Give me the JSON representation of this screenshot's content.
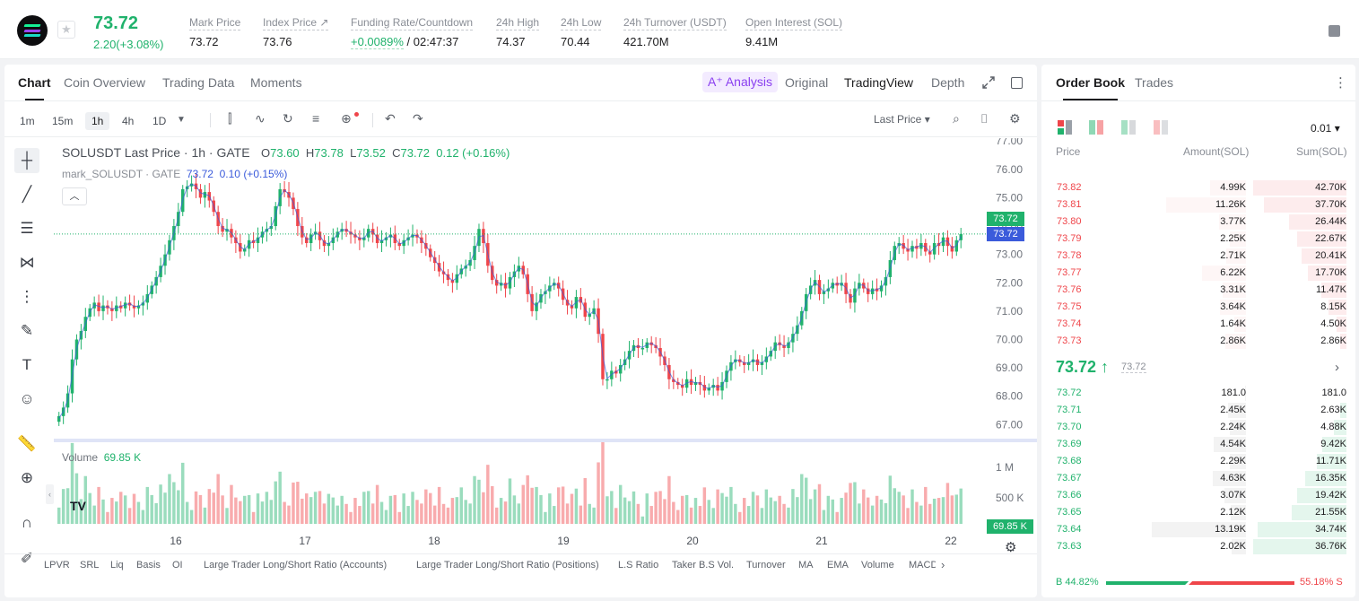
{
  "header": {
    "last_price": "73.72",
    "change": "2.20(+3.08%)",
    "stats": [
      {
        "label": "Mark Price",
        "value": "73.72"
      },
      {
        "label": "Index Price ↗",
        "value": "73.76"
      },
      {
        "label": "Funding Rate/Countdown",
        "value_green": "+0.0089%",
        "value": " / 02:47:37"
      },
      {
        "label": "24h High",
        "value": "74.37"
      },
      {
        "label": "24h Low",
        "value": "70.44"
      },
      {
        "label": "24h Turnover (USDT)",
        "value": "421.70M"
      },
      {
        "label": "Open Interest (SOL)",
        "value": "9.41M"
      }
    ],
    "star": "★"
  },
  "chart_tabs": [
    "Chart",
    "Coin Overview",
    "Trading Data",
    "Moments"
  ],
  "view_tabs": {
    "analysis": "A⁺ Analysis",
    "original": "Original",
    "tradingview": "TradingView",
    "depth": "Depth"
  },
  "timeframes": [
    "1m",
    "15m",
    "1h",
    "4h",
    "1D"
  ],
  "price_source": "Last Price ▾",
  "legend": {
    "symbol": "SOLUSDT Last Price · 1h · GATE",
    "o_label": "O",
    "o": "73.60",
    "h_label": "H",
    "h": "73.78",
    "l_label": "L",
    "l": "73.52",
    "c_label": "C",
    "c": "73.72",
    "chg": "0.12 (+0.16%)",
    "mark_label": "mark_SOLUSDT · GATE",
    "mark_value": "73.72",
    "mark_chg": "0.10 (+0.15%)",
    "volume_label": "Volume",
    "volume_value": "69.85 K"
  },
  "price_tags": {
    "last": "73.72",
    "mark": "73.72",
    "volume": "69.85 K"
  },
  "bottom_indicators": [
    "LPVR",
    "SRL",
    "Liq",
    "Basis",
    "OI",
    "Large Trader Long/Short Ratio (Accounts)",
    "Large Trader Long/Short Ratio (Positions)",
    "L.S Ratio",
    "Taker B.S Vol.",
    "Turnover",
    "MA",
    "EMA",
    "Volume",
    "MACD"
  ],
  "chart_data": {
    "type": "candlestick",
    "price_axis_ticks": [
      "77.00",
      "76.00",
      "75.00",
      "74.00",
      "73.00",
      "72.00",
      "71.00",
      "70.00",
      "69.00",
      "68.00",
      "67.00"
    ],
    "ylim": [
      66.6,
      77.1
    ],
    "volume_axis_ticks": [
      "1 M",
      "500 K"
    ],
    "x_ticks": [
      "16",
      "17",
      "18",
      "19",
      "20",
      "21",
      "22"
    ],
    "close_path": [
      67.3,
      67.6,
      68.1,
      69.3,
      70.0,
      70.3,
      70.8,
      71.1,
      71.3,
      71.0,
      71.2,
      71.1,
      71.0,
      71.2,
      71.1,
      71.3,
      71.2,
      71.1,
      71.2,
      71.3,
      71.6,
      71.9,
      72.2,
      72.6,
      73.0,
      73.5,
      74.0,
      74.5,
      75.3,
      75.4,
      75.5,
      75.3,
      75.0,
      75.2,
      74.9,
      74.5,
      74.0,
      73.8,
      73.9,
      73.6,
      73.4,
      73.1,
      73.2,
      73.5,
      73.4,
      73.6,
      73.8,
      73.9,
      74.0,
      74.7,
      75.3,
      75.2,
      75.0,
      74.6,
      74.0,
      73.6,
      73.4,
      73.7,
      73.8,
      73.5,
      73.3,
      73.4,
      73.6,
      73.8,
      73.9,
      73.8,
      73.7,
      73.6,
      73.5,
      73.6,
      73.9,
      73.7,
      73.4,
      73.5,
      73.6,
      73.7,
      73.4,
      73.3,
      73.5,
      73.6,
      73.7,
      73.6,
      73.4,
      73.2,
      72.9,
      72.7,
      72.4,
      72.3,
      72.1,
      72.0,
      72.3,
      72.5,
      72.6,
      72.8,
      73.3,
      73.9,
      73.4,
      72.6,
      72.1,
      71.9,
      72.0,
      71.8,
      72.2,
      72.4,
      72.6,
      72.3,
      71.6,
      71.0,
      71.3,
      71.6,
      71.7,
      71.9,
      72.0,
      71.8,
      71.4,
      71.2,
      71.1,
      71.5,
      71.3,
      70.8,
      70.9,
      71.1,
      70.2,
      68.6,
      68.6,
      68.9,
      68.8,
      69.1,
      69.3,
      69.6,
      69.8,
      69.7,
      69.7,
      69.9,
      69.8,
      69.7,
      69.4,
      69.1,
      68.6,
      68.5,
      68.4,
      68.3,
      68.6,
      68.4,
      68.5,
      68.4,
      68.2,
      68.3,
      68.4,
      68.2,
      68.5,
      68.9,
      69.2,
      69.3,
      69.2,
      69.1,
      69.2,
      69.3,
      69.1,
      69.2,
      69.4,
      69.6,
      69.9,
      69.8,
      69.7,
      69.9,
      70.2,
      70.5,
      71.0,
      71.6,
      71.9,
      72.1,
      71.6,
      71.7,
      71.8,
      72.0,
      71.9,
      72.0,
      71.6,
      71.3,
      71.8,
      72.0,
      71.8,
      71.6,
      71.8,
      71.7,
      71.9,
      72.2,
      72.8,
      73.3,
      73.4,
      73.2,
      73.1,
      73.3,
      73.2,
      73.4,
      73.1,
      73.0,
      73.4,
      73.3,
      73.6,
      73.3,
      73.1,
      73.5,
      73.72
    ],
    "volume_scale_k": 1000
  },
  "orderbook": {
    "tabs": [
      "Order Book",
      "Trades"
    ],
    "precision": "0.01 ▾",
    "headers": [
      "Price",
      "Amount(SOL)",
      "Sum(SOL)"
    ],
    "asks": [
      {
        "price": "73.82",
        "amount": "4.99K",
        "sum": "42.70K",
        "depth": 1.0,
        "amt": 0.38
      },
      {
        "price": "73.81",
        "amount": "11.26K",
        "sum": "37.70K",
        "depth": 0.88,
        "amt": 0.85
      },
      {
        "price": "73.80",
        "amount": "3.77K",
        "sum": "26.44K",
        "depth": 0.62,
        "amt": 0.29
      },
      {
        "price": "73.79",
        "amount": "2.25K",
        "sum": "22.67K",
        "depth": 0.53,
        "amt": 0.17
      },
      {
        "price": "73.78",
        "amount": "2.71K",
        "sum": "20.41K",
        "depth": 0.48,
        "amt": 0.21
      },
      {
        "price": "73.77",
        "amount": "6.22K",
        "sum": "17.70K",
        "depth": 0.41,
        "amt": 0.47
      },
      {
        "price": "73.76",
        "amount": "3.31K",
        "sum": "11.47K",
        "depth": 0.27,
        "amt": 0.25
      },
      {
        "price": "73.75",
        "amount": "3.64K",
        "sum": "8.15K",
        "depth": 0.19,
        "amt": 0.28
      },
      {
        "price": "73.74",
        "amount": "1.64K",
        "sum": "4.50K",
        "depth": 0.11,
        "amt": 0.12
      },
      {
        "price": "73.73",
        "amount": "2.86K",
        "sum": "2.86K",
        "depth": 0.07,
        "amt": 0.22
      }
    ],
    "mid_price": "73.72 ↑",
    "mid_mark": "73.72",
    "bids": [
      {
        "price": "73.72",
        "amount": "181.0",
        "sum": "181.0",
        "depth": 0.0,
        "amt": 0.01
      },
      {
        "price": "73.71",
        "amount": "2.45K",
        "sum": "2.63K",
        "depth": 0.07,
        "amt": 0.19
      },
      {
        "price": "73.70",
        "amount": "2.24K",
        "sum": "4.88K",
        "depth": 0.13,
        "amt": 0.17
      },
      {
        "price": "73.69",
        "amount": "4.54K",
        "sum": "9.42K",
        "depth": 0.26,
        "amt": 0.34
      },
      {
        "price": "73.68",
        "amount": "2.29K",
        "sum": "11.71K",
        "depth": 0.32,
        "amt": 0.17
      },
      {
        "price": "73.67",
        "amount": "4.63K",
        "sum": "16.35K",
        "depth": 0.44,
        "amt": 0.35
      },
      {
        "price": "73.66",
        "amount": "3.07K",
        "sum": "19.42K",
        "depth": 0.53,
        "amt": 0.23
      },
      {
        "price": "73.65",
        "amount": "2.12K",
        "sum": "21.55K",
        "depth": 0.59,
        "amt": 0.16
      },
      {
        "price": "73.64",
        "amount": "13.19K",
        "sum": "34.74K",
        "depth": 0.95,
        "amt": 1.0
      },
      {
        "price": "73.63",
        "amount": "2.02K",
        "sum": "36.76K",
        "depth": 1.0,
        "amt": 0.15
      }
    ],
    "buy_ratio": "B 44.82%",
    "sell_ratio": "55.18% S",
    "buy_fraction": 0.4482
  },
  "colors": {
    "up": "#20b26c",
    "down": "#ef454a",
    "accent": "#8a3ff0",
    "mark_line": "#3b5bdb"
  }
}
